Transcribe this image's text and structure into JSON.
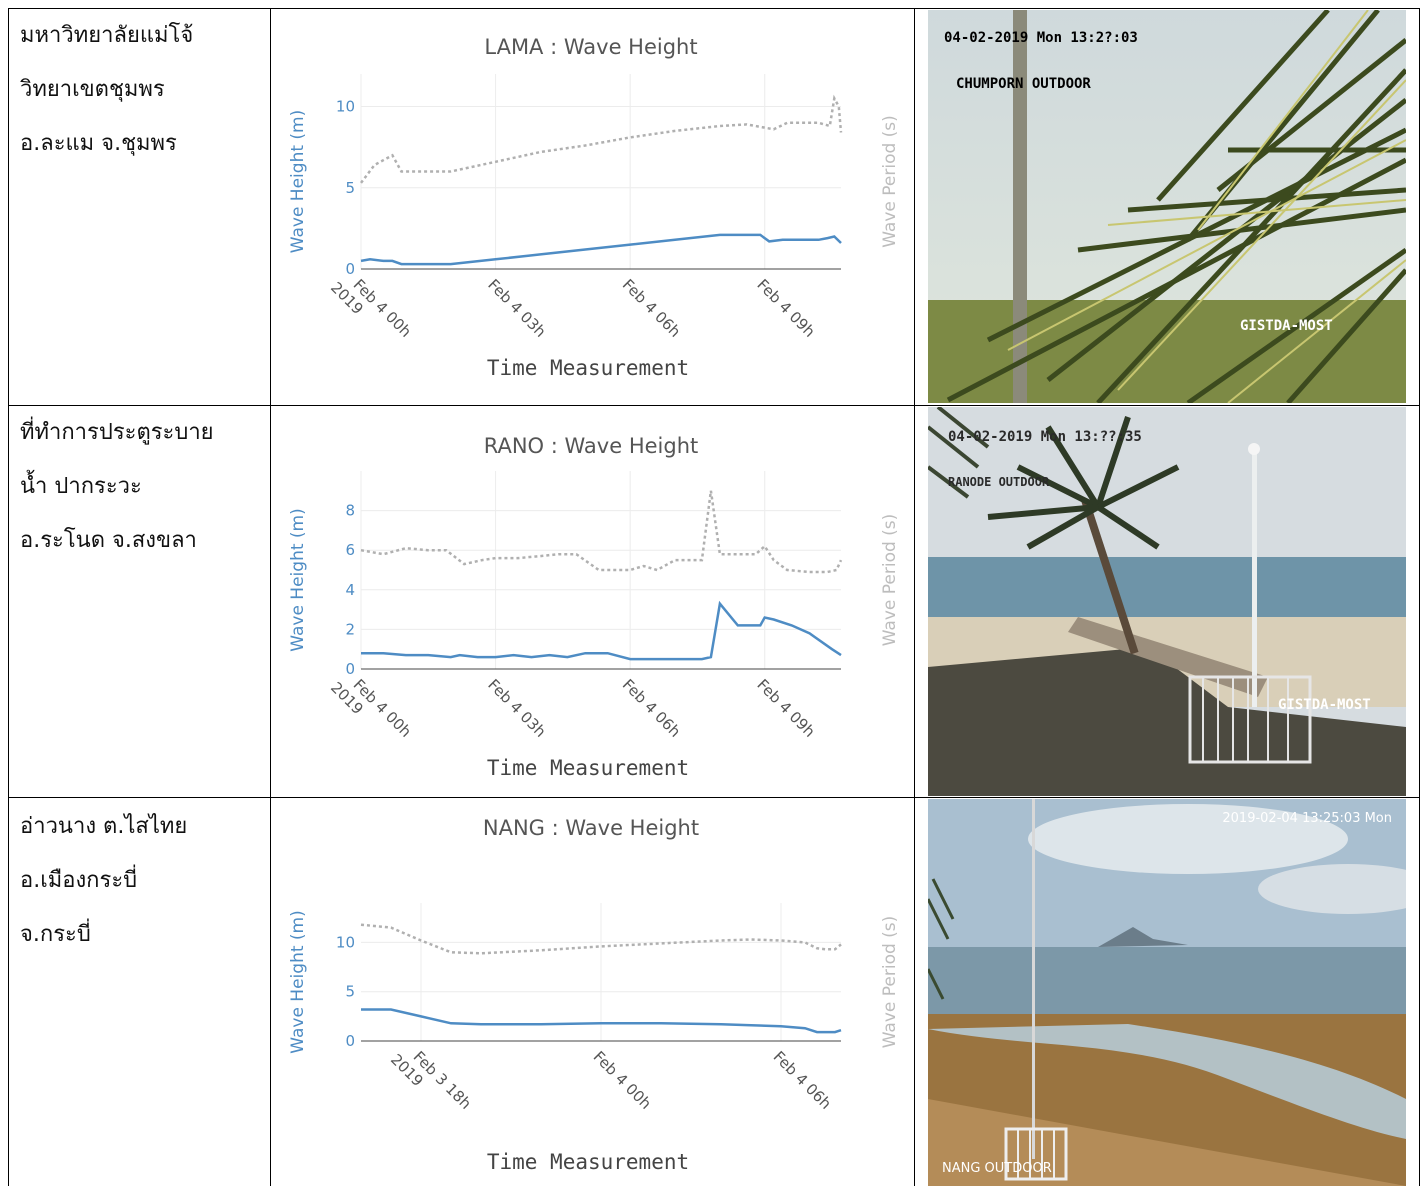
{
  "rows": [
    {
      "location": [
        "มหาวิทยาลัยแม่โจ้",
        "วิทยาเขตชุมพร",
        "อ.ละแม จ.ชุมพร"
      ],
      "camera": {
        "timestamp": "04-02-2019 Mon 13:2?:03",
        "name": "CHUMPORN OUTDOOR",
        "watermark": "GISTDA-MOST"
      }
    },
    {
      "location": [
        "ที่ทำการประตูระบาย",
        "น้ำ ปากระวะ",
        "อ.ระโนด จ.สงขลา"
      ],
      "camera": {
        "timestamp": "04-02-2019 Mon 13:??:35",
        "name": "RANODE OUTDOOR",
        "watermark": "GISTDA-MOST"
      }
    },
    {
      "location": [
        "อ่าวนาง ต.ไสไทย",
        "อ.เมืองกระบี่",
        "จ.กระบี่"
      ],
      "camera": {
        "timestamp": "2019-02-04 13:25:03 Mon",
        "name": "NANG OUTDOOR",
        "watermark": ""
      }
    }
  ],
  "chart_data": [
    {
      "type": "line",
      "title": "LAMA : Wave Height",
      "xlabel": "Time Measurement",
      "ylabel": "Wave Height (m)",
      "y2label": "Wave Period (s)",
      "ylim": [
        0,
        12
      ],
      "yticks": [
        0,
        5,
        10
      ],
      "xlim": [
        0,
        10.7
      ],
      "xticks": [
        0,
        3,
        6,
        9
      ],
      "xticklabels": [
        "Feb 4 00h\n2019",
        "Feb 4 03h",
        "Feb 4 06h",
        "Feb 4 09h"
      ],
      "series": [
        {
          "name": "Wave Height (m)",
          "color": "#4e8cc4",
          "style": "solid",
          "x": [
            0,
            0.2,
            0.5,
            0.7,
            0.9,
            1.5,
            2,
            3,
            4,
            5,
            6,
            7,
            8,
            8.6,
            8.9,
            9.1,
            9.4,
            9.8,
            10.2,
            10.4,
            10.55,
            10.7
          ],
          "y": [
            0.5,
            0.6,
            0.5,
            0.5,
            0.3,
            0.3,
            0.3,
            0.6,
            0.9,
            1.2,
            1.5,
            1.8,
            2.1,
            2.1,
            2.1,
            1.7,
            1.8,
            1.8,
            1.8,
            1.9,
            2.0,
            1.6
          ]
        },
        {
          "name": "Wave Period (s)",
          "color": "#b0b0b0",
          "style": "dashed",
          "x": [
            0,
            0.3,
            0.7,
            0.9,
            1.1,
            2,
            3,
            4,
            5,
            6,
            7,
            8,
            8.6,
            9.2,
            9.5,
            9.8,
            10.2,
            10.45,
            10.55,
            10.65,
            10.7
          ],
          "y": [
            5.3,
            6.4,
            7.0,
            6.0,
            6.0,
            6.0,
            6.6,
            7.2,
            7.6,
            8.1,
            8.5,
            8.8,
            8.9,
            8.6,
            9.0,
            9.0,
            9.0,
            8.8,
            10.5,
            10.0,
            8.4
          ]
        }
      ]
    },
    {
      "type": "line",
      "title": "RANO : Wave Height",
      "xlabel": "Time Measurement",
      "ylabel": "Wave Height (m)",
      "y2label": "Wave Period (s)",
      "ylim": [
        0,
        10
      ],
      "yticks": [
        0,
        2,
        4,
        6,
        8
      ],
      "xlim": [
        0,
        10.7
      ],
      "xticks": [
        0,
        3,
        6,
        9
      ],
      "xticklabels": [
        "Feb 4 00h\n2019",
        "Feb 4 03h",
        "Feb 4 06h",
        "Feb 4 09h"
      ],
      "series": [
        {
          "name": "Wave Height (m)",
          "color": "#4e8cc4",
          "style": "solid",
          "x": [
            0,
            0.5,
            1,
            1.5,
            2,
            2.2,
            2.6,
            3,
            3.4,
            3.8,
            4.2,
            4.6,
            5,
            5.5,
            6,
            6.5,
            7,
            7.6,
            7.8,
            8.0,
            8.4,
            8.9,
            9.0,
            9.2,
            9.6,
            10,
            10.5,
            10.7
          ],
          "y": [
            0.8,
            0.8,
            0.7,
            0.7,
            0.6,
            0.7,
            0.6,
            0.6,
            0.7,
            0.6,
            0.7,
            0.6,
            0.8,
            0.8,
            0.5,
            0.5,
            0.5,
            0.5,
            0.6,
            3.3,
            2.2,
            2.2,
            2.6,
            2.5,
            2.2,
            1.8,
            1.0,
            0.7
          ]
        },
        {
          "name": "Wave Period (s)",
          "color": "#b0b0b0",
          "style": "dashed",
          "x": [
            0,
            0.5,
            1,
            1.5,
            1.9,
            2.3,
            2.7,
            3.0,
            3.5,
            4,
            4.4,
            4.8,
            5.3,
            6,
            6.3,
            6.6,
            7,
            7.4,
            7.6,
            7.8,
            8,
            8.4,
            8.8,
            9.0,
            9.2,
            9.5,
            10,
            10.4,
            10.6,
            10.7
          ],
          "y": [
            6.0,
            5.8,
            6.1,
            6.0,
            6.0,
            5.3,
            5.5,
            5.6,
            5.6,
            5.7,
            5.8,
            5.8,
            5.0,
            5.0,
            5.2,
            5.0,
            5.5,
            5.5,
            5.5,
            9.0,
            5.8,
            5.8,
            5.8,
            6.2,
            5.5,
            5.0,
            4.9,
            4.9,
            5.0,
            5.5
          ]
        }
      ]
    },
    {
      "type": "line",
      "title": "NANG : Wave Height",
      "xlabel": "Time Measurement",
      "ylabel": "Wave Height (m)",
      "y2label": "Wave Period (s)",
      "ylim": [
        0,
        14
      ],
      "yticks": [
        0,
        5,
        10
      ],
      "xlim": [
        0,
        16
      ],
      "xticks": [
        2,
        8,
        14
      ],
      "xticklabels": [
        "Feb 3 18h\n2019",
        "Feb 4 00h",
        "Feb 4 06h"
      ],
      "series": [
        {
          "name": "Wave Height (m)",
          "color": "#4e8cc4",
          "style": "solid",
          "x": [
            0,
            1,
            2,
            3,
            4,
            6,
            8,
            10,
            12,
            13,
            14,
            14.8,
            15.2,
            15.5,
            15.8,
            16
          ],
          "y": [
            3.2,
            3.2,
            2.5,
            1.8,
            1.7,
            1.7,
            1.8,
            1.8,
            1.7,
            1.6,
            1.5,
            1.3,
            0.9,
            0.9,
            0.9,
            1.1
          ]
        },
        {
          "name": "Wave Period (s)",
          "color": "#b0b0b0",
          "style": "dashed",
          "x": [
            0,
            1,
            2,
            3,
            4,
            6,
            8,
            10,
            12,
            13,
            14,
            14.8,
            15.2,
            15.5,
            15.8,
            16
          ],
          "y": [
            11.8,
            11.5,
            10.2,
            9.0,
            8.9,
            9.2,
            9.6,
            9.9,
            10.2,
            10.3,
            10.2,
            10.0,
            9.4,
            9.3,
            9.3,
            9.8
          ]
        }
      ]
    }
  ]
}
